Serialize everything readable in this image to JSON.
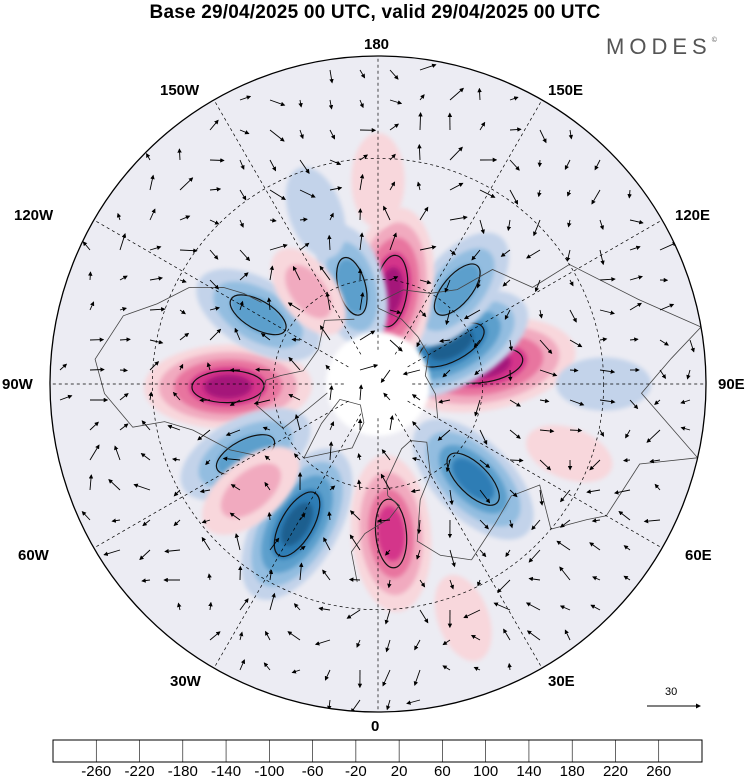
{
  "title": "Base 29/04/2025 00 UTC, valid 29/04/2025 00 UTC",
  "logo": "MODES",
  "logo_mark": "©",
  "lon_labels": {
    "top": "180",
    "bottom": "0",
    "left": "90W",
    "right": "90E",
    "upper_left_1": "150W",
    "upper_left_2": "120W",
    "upper_right_1": "150E",
    "upper_right_2": "120E",
    "lower_left_1": "60W",
    "lower_left_2": "30W",
    "lower_right_1": "60E",
    "lower_right_2": "30E"
  },
  "vector_reference": "30",
  "colorbar": {
    "labels": [
      "-260",
      "-220",
      "-180",
      "-140",
      "-100",
      "-60",
      "-20",
      "20",
      "60",
      "100",
      "140",
      "180",
      "220",
      "260"
    ],
    "colors": [
      "#163c5e",
      "#1d5e8f",
      "#2e7db5",
      "#5b9fcc",
      "#93bde0",
      "#c3d3ea",
      "#e6e4f1",
      "#ffffff",
      "#f8d7dc",
      "#f1aabf",
      "#e8759f",
      "#d4368a",
      "#a5137a",
      "#6b0f6b",
      "#4a1066"
    ]
  },
  "anomalies": [
    {
      "lat": 48,
      "lon": -89,
      "sign": "positive",
      "strength": 2.0
    },
    {
      "lat": 51,
      "lon": -120,
      "sign": "negative",
      "strength": 1.4
    },
    {
      "lat": 48,
      "lon": -62,
      "sign": "negative",
      "strength": 1.5
    },
    {
      "lat": 45,
      "lon": -30,
      "sign": "negative",
      "strength": 2.0
    },
    {
      "lat": 44,
      "lon": -50,
      "sign": "positive",
      "strength": 1.0
    },
    {
      "lat": 48,
      "lon": 5,
      "sign": "positive",
      "strength": 1.8
    },
    {
      "lat": 52,
      "lon": 45,
      "sign": "negative",
      "strength": 1.7
    },
    {
      "lat": 59,
      "lon": 100,
      "sign": "positive",
      "strength": 2.3
    },
    {
      "lat": 66,
      "lon": 118,
      "sign": "negative",
      "strength": 2.0
    },
    {
      "lat": 55,
      "lon": 140,
      "sign": "negative",
      "strength": 1.4
    },
    {
      "lat": 63,
      "lon": 172,
      "sign": "positive",
      "strength": 2.0
    },
    {
      "lat": 61,
      "lon": -165,
      "sign": "negative",
      "strength": 1.2
    },
    {
      "lat": 57,
      "lon": -143,
      "sign": "positive",
      "strength": 0.7
    },
    {
      "lat": 40,
      "lon": -160,
      "sign": "negative",
      "strength": 0.6
    },
    {
      "lat": 35,
      "lon": 180,
      "sign": "positive",
      "strength": 0.6
    },
    {
      "lat": 30,
      "lon": 90,
      "sign": "negative",
      "strength": 0.6
    },
    {
      "lat": 25,
      "lon": 20,
      "sign": "positive",
      "strength": 0.5
    },
    {
      "lat": 35,
      "lon": 70,
      "sign": "positive",
      "strength": 0.5
    }
  ]
}
